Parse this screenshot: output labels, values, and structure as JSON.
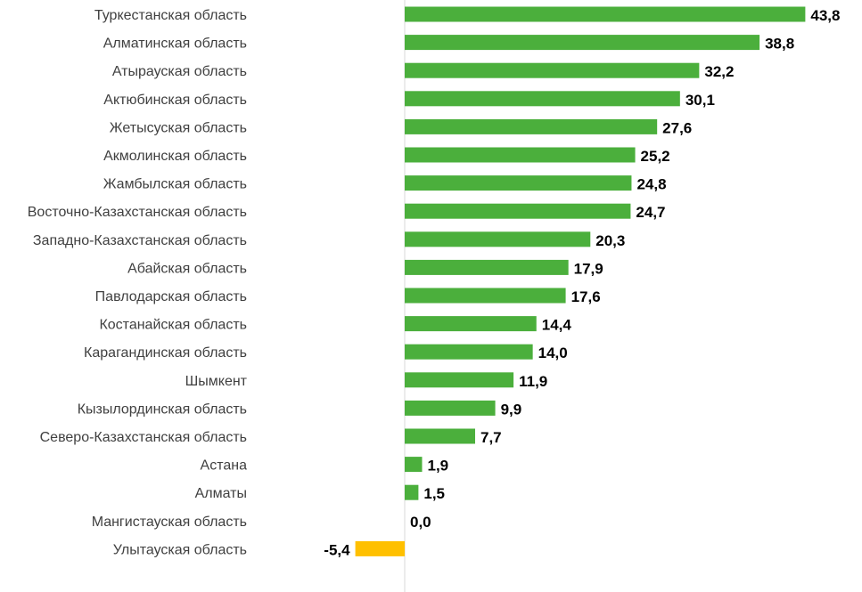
{
  "chart_data": {
    "type": "bar",
    "orientation": "horizontal",
    "categories": [
      "Туркестанская область",
      "Алматинская область",
      "Атырауская область",
      "Актюбинская область",
      "Жетысуская область",
      "Акмолинская область",
      "Жамбылская область",
      "Восточно-Казахстанская область",
      "Западно-Казахстанская область",
      "Абайская область",
      "Павлодарская область",
      "Костанайская область",
      "Карагандинская область",
      "Шымкент",
      "Кызылординская область",
      "Северо-Казахстанская область",
      "Астана",
      "Алматы",
      "Мангистауская область",
      "Улытауская область"
    ],
    "values": [
      43.8,
      38.8,
      32.2,
      30.1,
      27.6,
      25.2,
      24.8,
      24.7,
      20.3,
      17.9,
      17.6,
      14.4,
      14.0,
      11.9,
      9.9,
      7.7,
      1.9,
      1.5,
      0.0,
      -5.4
    ],
    "value_labels": [
      "43,8",
      "38,8",
      "32,2",
      "30,1",
      "27,6",
      "25,2",
      "24,8",
      "24,7",
      "20,3",
      "17,9",
      "17,6",
      "14,4",
      "14,0",
      "11,9",
      "9,9",
      "7,7",
      "1,9",
      "1,5",
      "0,0",
      "-5,4"
    ],
    "title": "",
    "xlabel": "",
    "ylabel": "",
    "colors": {
      "positive": "#4BAF3C",
      "negative": "#FFC000",
      "axis": "#D9D9D9"
    },
    "grid": false,
    "legend": "none"
  }
}
